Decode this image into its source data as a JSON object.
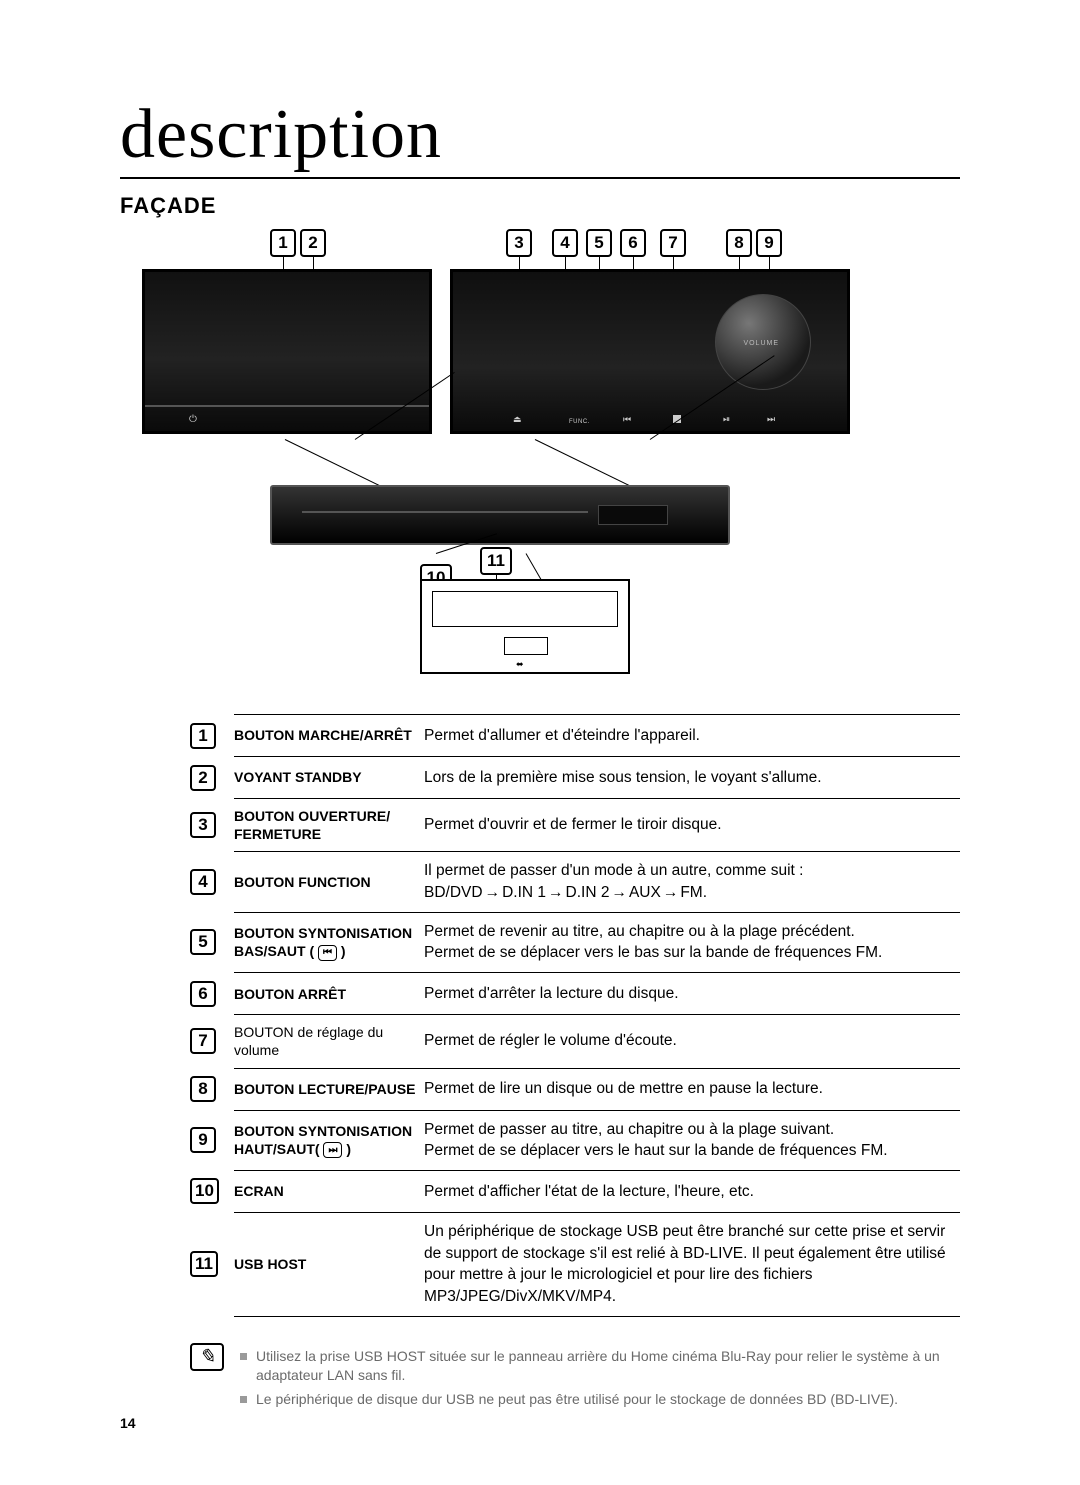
{
  "page_number": "14",
  "title": "description",
  "section_heading": "FAÇADE",
  "diagram": {
    "callouts_top": [
      "1",
      "2",
      "3",
      "4",
      "5",
      "6",
      "7",
      "8",
      "9"
    ],
    "callouts_bottom": [
      "10",
      "11"
    ],
    "volume_label": "VOLUME",
    "func_label": "FUNC.",
    "usb_symbol": "⎋"
  },
  "rows": [
    {
      "n": "1",
      "label": "BOUTON MARCHE/ARRÊT",
      "label2": "",
      "text": "Permet d'allumer et d'éteindre l'appareil."
    },
    {
      "n": "2",
      "label": "VOYANT STANDBY",
      "label2": "",
      "text": "Lors de la première mise sous tension, le voyant s'allume."
    },
    {
      "n": "3",
      "label": "BOUTON OUVERTURE/",
      "label2": "FERMETURE",
      "text": "Permet d'ouvrir et de fermer le tiroir disque."
    },
    {
      "n": "4",
      "label": "BOUTON FUNCTION",
      "label2": "",
      "text": "Il permet de passer d'un mode à un autre, comme suit :",
      "text2": "BD/DVD → D.IN 1 → D.IN 2 → AUX → FM."
    },
    {
      "n": "5",
      "label": "BOUTON SYNTONISATION",
      "label2": "BAS/SAUT ( ",
      "icon": "prev",
      "label3": " )",
      "text": "Permet de revenir au titre, au chapitre ou à la plage précédent.",
      "text2": "Permet de se déplacer vers le bas sur la bande de fréquences FM."
    },
    {
      "n": "6",
      "label": "BOUTON ARRÊT",
      "label2": "",
      "text": "Permet d'arrêter la lecture du disque."
    },
    {
      "n": "7",
      "label": "BOUTON de réglage du volume",
      "label2": "",
      "normal": true,
      "text": "Permet de régler le volume d'écoute."
    },
    {
      "n": "8",
      "label": "BOUTON LECTURE/PAUSE",
      "label2": "",
      "text": "Permet de lire un disque ou de mettre en pause la lecture."
    },
    {
      "n": "9",
      "label": "BOUTON SYNTONISATION",
      "label2": "HAUT/SAUT( ",
      "icon": "next",
      "label3": " )",
      "text": "Permet de passer au titre, au chapitre ou à la plage suivant.",
      "text2": "Permet de se déplacer vers le haut sur la bande de fréquences FM."
    },
    {
      "n": "10",
      "label": "ECRAN",
      "label2": "",
      "text": "Permet d'afficher l'état de la lecture, l'heure, etc."
    },
    {
      "n": "11",
      "label": "USB HOST",
      "label2": "",
      "text": "Un périphérique de stockage USB peut être branché sur cette prise et servir de support de stockage s'il est relié à BD-LIVE. Il peut également être utilisé pour mettre à jour le micrologiciel et pour lire des fichiers MP3/JPEG/DivX/MKV/MP4."
    }
  ],
  "notes": [
    "Utilisez la prise USB HOST située sur le panneau arrière du Home cinéma Blu-Ray pour relier le système à un adaptateur LAN sans fil.",
    "Le périphérique de disque dur USB ne peut pas être utilisé pour le stockage de données BD (BD-LIVE)."
  ],
  "colors": {
    "text": "#000000",
    "device_dark": "#111111",
    "note_gray": "#6a6a6a"
  }
}
